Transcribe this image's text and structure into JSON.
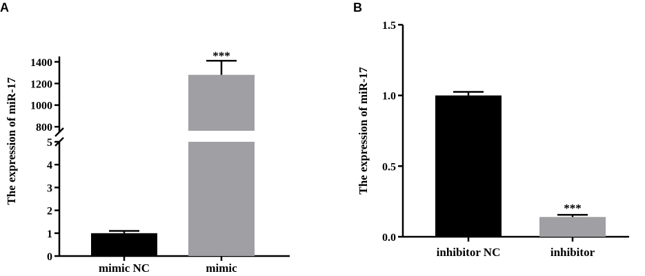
{
  "chart_data": [
    {
      "panel": "A",
      "type": "bar",
      "ylabel": "The expression of miR-17",
      "categories": [
        "mimic NC",
        "mimic"
      ],
      "values": [
        1,
        1280
      ],
      "errors": [
        0.1,
        130
      ],
      "significance": [
        "",
        "***"
      ],
      "colors": [
        "#000000",
        "#a0a0a4"
      ],
      "broken_axis": true,
      "lower_ylim": [
        0,
        5
      ],
      "lower_yticks": [
        "0",
        "1",
        "2",
        "3",
        "4",
        "5"
      ],
      "upper_ylim": [
        750,
        1450
      ],
      "upper_yticks": [
        "800",
        "1000",
        "1200",
        "1400"
      ]
    },
    {
      "panel": "B",
      "type": "bar",
      "ylabel": "The expression of miR-17",
      "categories": [
        "inhibitor NC",
        "inhibitor"
      ],
      "values": [
        1.0,
        0.14
      ],
      "errors": [
        0.025,
        0.015
      ],
      "significance": [
        "",
        "***"
      ],
      "colors": [
        "#000000",
        "#a0a0a4"
      ],
      "ylim": [
        0,
        1.5
      ],
      "yticks": [
        "0.0",
        "0.5",
        "1.0",
        "1.5"
      ]
    }
  ]
}
